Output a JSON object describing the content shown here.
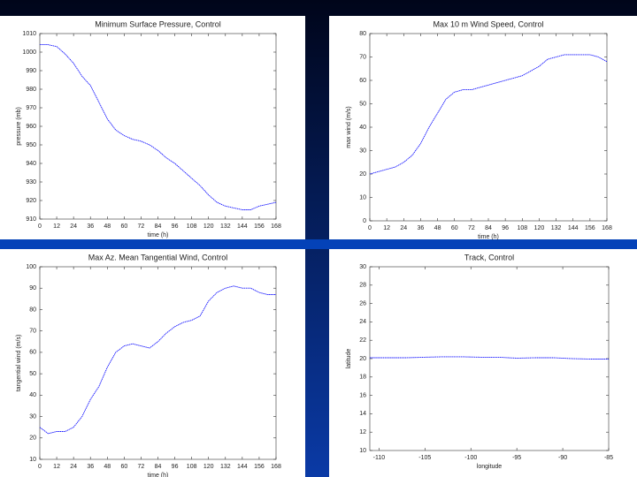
{
  "chart_data": [
    {
      "type": "line",
      "title": "Minimum Surface Pressure, Control",
      "x_label": "time (h)",
      "y_label": "pressure (mb)",
      "x": [
        0,
        6,
        12,
        18,
        24,
        30,
        36,
        42,
        48,
        54,
        60,
        66,
        72,
        78,
        84,
        90,
        96,
        102,
        108,
        114,
        120,
        126,
        132,
        138,
        144,
        150,
        156,
        162,
        168
      ],
      "values": [
        1004,
        1004,
        1003,
        999,
        994,
        987,
        982,
        973,
        964,
        958,
        955,
        953,
        952,
        950,
        947,
        943,
        940,
        936,
        932,
        928,
        923,
        919,
        917,
        916,
        915,
        915,
        917,
        918,
        919
      ],
      "color": "#1a1aff",
      "xlim": [
        0,
        168
      ],
      "ylim": [
        910,
        1010
      ],
      "xticks": [
        0,
        12,
        24,
        36,
        48,
        60,
        72,
        84,
        96,
        108,
        120,
        132,
        144,
        156,
        168
      ],
      "yticks": [
        910,
        920,
        930,
        940,
        950,
        960,
        970,
        980,
        990,
        1000,
        1010
      ]
    },
    {
      "type": "line",
      "title": "Max 10 m Wind Speed, Control",
      "x_label": "time (h)",
      "y_label": "max wind (m/s)",
      "x": [
        0,
        6,
        12,
        18,
        24,
        30,
        36,
        42,
        48,
        54,
        60,
        66,
        72,
        78,
        84,
        90,
        96,
        102,
        108,
        114,
        120,
        126,
        132,
        138,
        144,
        150,
        156,
        162,
        168
      ],
      "values": [
        20,
        21,
        22,
        23,
        25,
        28,
        33,
        40,
        46,
        52,
        55,
        56,
        56,
        57,
        58,
        59,
        60,
        61,
        62,
        64,
        66,
        69,
        70,
        71,
        71,
        71,
        71,
        70,
        68
      ],
      "color": "#1a1aff",
      "xlim": [
        0,
        168
      ],
      "ylim": [
        0,
        80
      ],
      "xticks": [
        0,
        12,
        24,
        36,
        48,
        60,
        72,
        84,
        96,
        108,
        120,
        132,
        144,
        156,
        168
      ],
      "yticks": [
        0,
        10,
        20,
        30,
        40,
        50,
        60,
        70,
        80
      ]
    },
    {
      "type": "line",
      "title": "Max Az. Mean Tangential Wind, Control",
      "x_label": "time (h)",
      "y_label": "tangential wind (m/s)",
      "x": [
        0,
        6,
        12,
        18,
        24,
        30,
        36,
        42,
        48,
        54,
        60,
        66,
        72,
        78,
        84,
        90,
        96,
        102,
        108,
        114,
        120,
        126,
        132,
        138,
        144,
        150,
        156,
        162,
        168
      ],
      "values": [
        25,
        22,
        23,
        23,
        25,
        30,
        38,
        44,
        53,
        60,
        63,
        64,
        63,
        62,
        65,
        69,
        72,
        74,
        75,
        77,
        84,
        88,
        90,
        91,
        90,
        90,
        88,
        87,
        87
      ],
      "color": "#1a1aff",
      "xlim": [
        0,
        168
      ],
      "ylim": [
        10,
        100
      ],
      "xticks": [
        0,
        12,
        24,
        36,
        48,
        60,
        72,
        84,
        96,
        108,
        120,
        132,
        144,
        156,
        168
      ],
      "yticks": [
        10,
        20,
        30,
        40,
        50,
        60,
        70,
        80,
        90,
        100
      ]
    },
    {
      "type": "line",
      "title": "Track, Control",
      "x_label": "longitude",
      "y_label": "latitude",
      "x": [
        -111,
        -109,
        -107,
        -105,
        -103,
        -101,
        -99,
        -97,
        -95,
        -93,
        -91,
        -89,
        -87,
        -85
      ],
      "values": [
        20.1,
        20.1,
        20.1,
        20.15,
        20.2,
        20.2,
        20.15,
        20.15,
        20.05,
        20.1,
        20.1,
        20.0,
        19.95,
        19.95
      ],
      "color": "#1a1aff",
      "xlim": [
        -111,
        -85
      ],
      "ylim": [
        10,
        30
      ],
      "xticks": [
        -110,
        -105,
        -100,
        -95,
        -90,
        -85
      ],
      "yticks": [
        10,
        12,
        14,
        16,
        18,
        20,
        22,
        24,
        26,
        28,
        30
      ]
    }
  ]
}
